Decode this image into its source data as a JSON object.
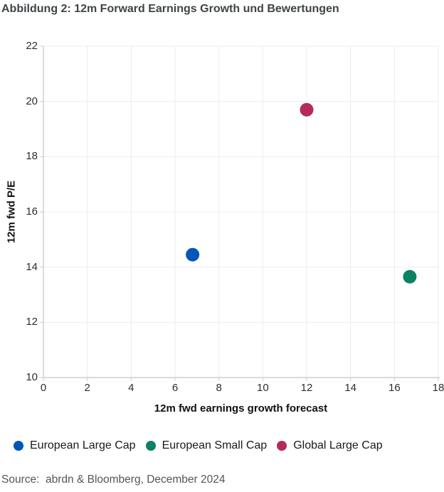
{
  "title": "Abbildung 2: 12m Forward Earnings Growth und Bewertungen",
  "source": "Source:  abrdn & Bloomberg, December 2024",
  "colors": {
    "background": "#FFFFFF",
    "title_text": "#3F4447",
    "axis_title_text": "#111111",
    "tick_text": "#2E2E2E",
    "legend_text": "#1A1A1A",
    "source_text": "#55565A",
    "gridline": "#ECECEC",
    "axis_line": "#CDCDCD"
  },
  "chart_data": {
    "type": "scatter",
    "title": "Abbildung 2: 12m Forward Earnings Growth und Bewertungen",
    "xlabel": "12m fwd earnings growth forecast",
    "ylabel": "12m fwd P/E",
    "xlim": [
      0,
      18
    ],
    "ylim": [
      10,
      22
    ],
    "x_ticks": [
      0,
      2,
      4,
      6,
      8,
      10,
      12,
      14,
      16,
      18
    ],
    "y_ticks": [
      10,
      12,
      14,
      16,
      18,
      20,
      22
    ],
    "grid": true,
    "legend_position": "bottom",
    "marker": {
      "shape": "circle",
      "radius": 9.5
    },
    "series": [
      {
        "name": "European Large Cap",
        "color": "#0057B8",
        "points": [
          {
            "x": 6.8,
            "y": 14.45
          }
        ]
      },
      {
        "name": "European Small Cap",
        "color": "#0C8163",
        "points": [
          {
            "x": 16.7,
            "y": 13.65
          }
        ]
      },
      {
        "name": "Global Large Cap",
        "color": "#B52A5C",
        "points": [
          {
            "x": 12.0,
            "y": 19.7
          }
        ]
      }
    ]
  }
}
